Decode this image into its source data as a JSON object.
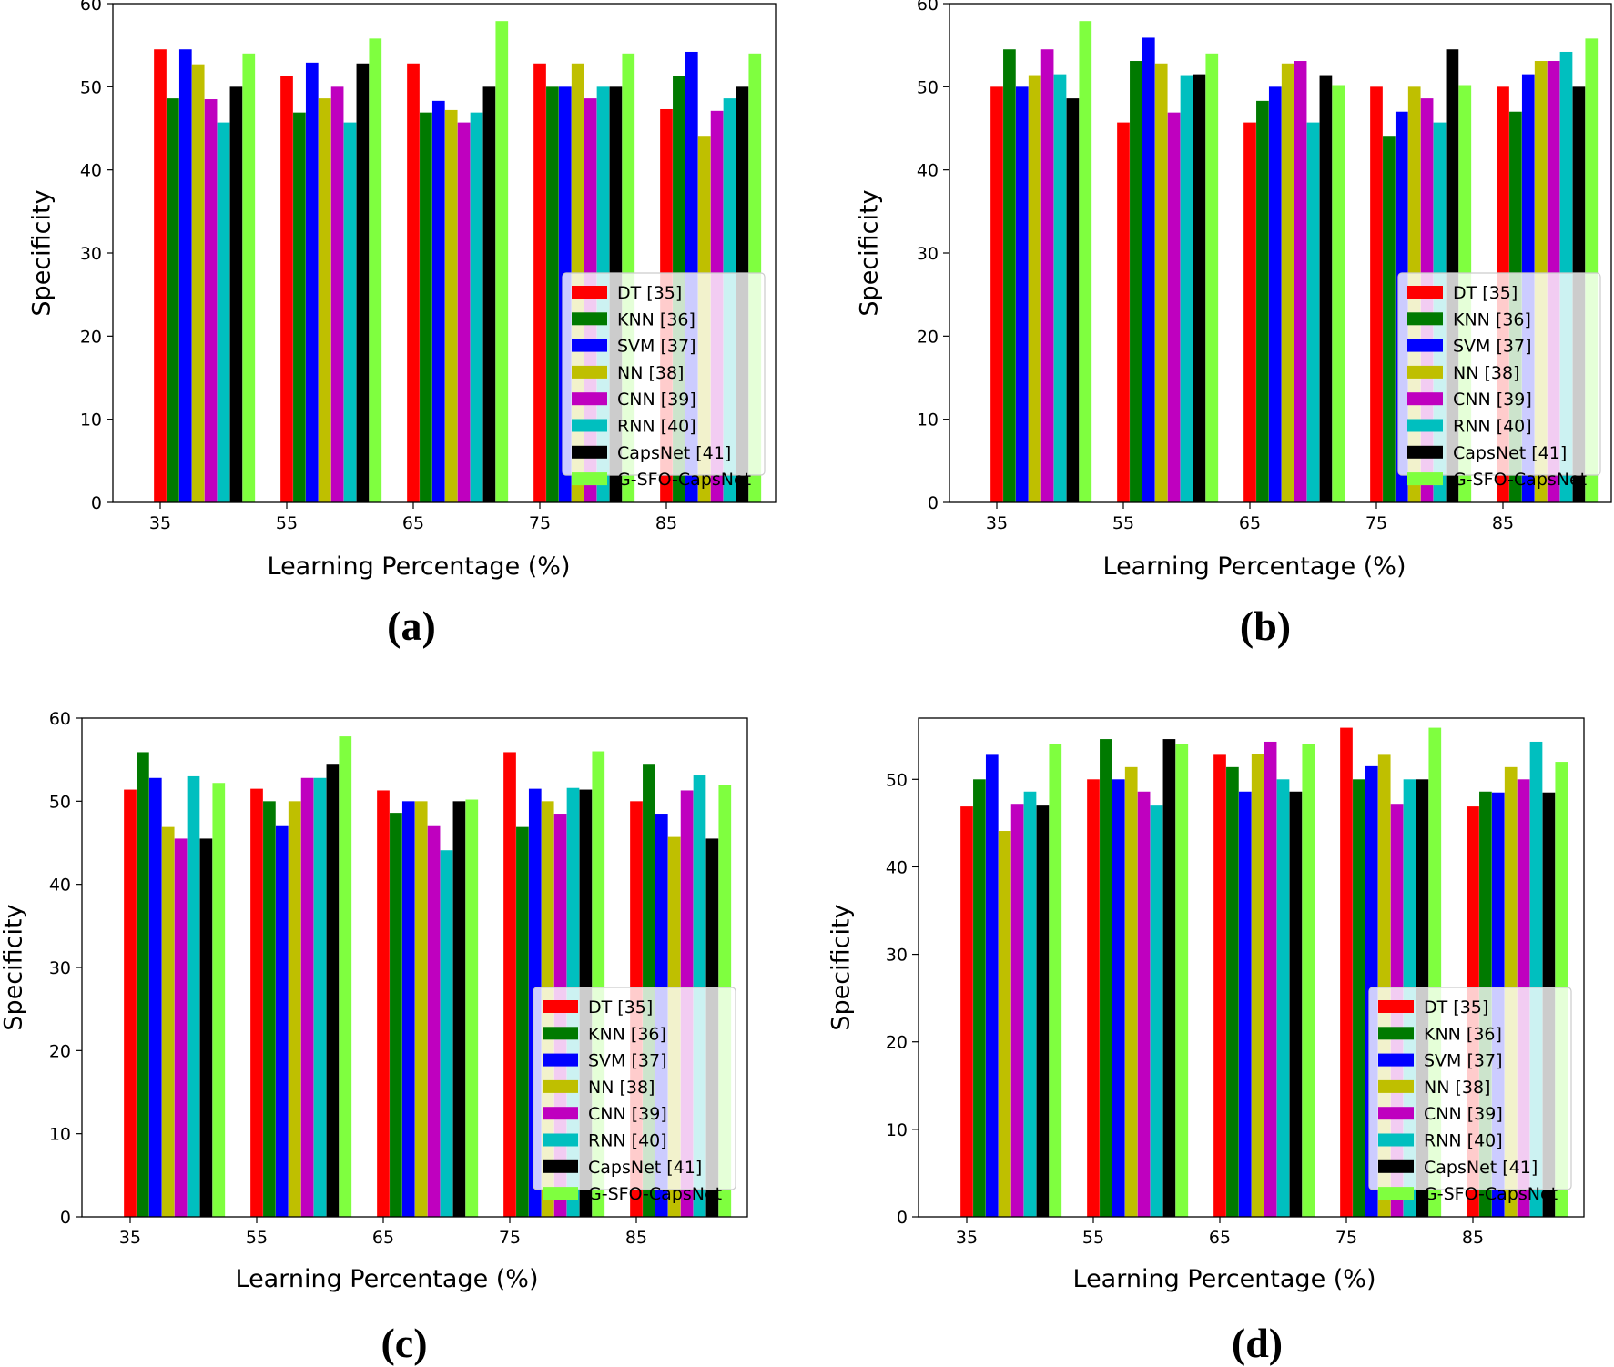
{
  "colors": {
    "DT [35]": "#ff0000",
    "KNN [36]": "#007a00",
    "SVM [37]": "#0000ff",
    "NN [38]": "#bfbf00",
    "CNN [39]": "#bf00bf",
    "RNN [40]": "#00bfbf",
    "CapsNet [41]": "#000000",
    "G-SFO-CapsNet": "#7fff3f"
  },
  "chart_data": [
    {
      "panel": "(a)",
      "type": "bar",
      "xlabel": "Learning Percentage (%)",
      "ylabel": "Specificity",
      "ylim": [
        0,
        60
      ],
      "yticks": [
        0,
        10,
        20,
        30,
        40,
        50,
        60
      ],
      "categories": [
        "35",
        "55",
        "65",
        "75",
        "85"
      ],
      "legend_position": "lower-right",
      "series": [
        {
          "name": "DT [35]",
          "values": [
            54.5,
            51.3,
            52.8,
            52.8,
            47.3
          ]
        },
        {
          "name": "KNN [36]",
          "values": [
            48.6,
            46.9,
            46.9,
            50.0,
            51.3
          ]
        },
        {
          "name": "SVM [37]",
          "values": [
            54.5,
            52.9,
            48.3,
            50.0,
            54.2
          ]
        },
        {
          "name": "NN [38]",
          "values": [
            52.7,
            48.6,
            47.2,
            52.8,
            44.1
          ]
        },
        {
          "name": "CNN [39]",
          "values": [
            48.5,
            50.0,
            45.7,
            48.6,
            47.1
          ]
        },
        {
          "name": "RNN [40]",
          "values": [
            45.7,
            45.7,
            46.9,
            50.0,
            48.6
          ]
        },
        {
          "name": "CapsNet [41]",
          "values": [
            50.0,
            52.8,
            50.0,
            50.0,
            50.0
          ]
        },
        {
          "name": "G-SFO-CapsNet",
          "values": [
            54.0,
            55.8,
            57.9,
            54.0,
            54.0
          ]
        }
      ]
    },
    {
      "panel": "(b)",
      "type": "bar",
      "xlabel": "Learning Percentage (%)",
      "ylabel": "Specificity",
      "ylim": [
        0,
        60
      ],
      "yticks": [
        0,
        10,
        20,
        30,
        40,
        50,
        60
      ],
      "categories": [
        "35",
        "55",
        "65",
        "75",
        "85"
      ],
      "legend_position": "lower-right",
      "series": [
        {
          "name": "DT [35]",
          "values": [
            50.0,
            45.7,
            45.7,
            50.0,
            50.0
          ]
        },
        {
          "name": "KNN [36]",
          "values": [
            54.5,
            53.1,
            48.3,
            44.1,
            47.0
          ]
        },
        {
          "name": "SVM [37]",
          "values": [
            50.0,
            55.9,
            50.0,
            47.0,
            51.5
          ]
        },
        {
          "name": "NN [38]",
          "values": [
            51.4,
            52.8,
            52.8,
            50.0,
            53.1
          ]
        },
        {
          "name": "CNN [39]",
          "values": [
            54.5,
            46.9,
            53.1,
            48.6,
            53.1
          ]
        },
        {
          "name": "RNN [40]",
          "values": [
            51.5,
            51.4,
            45.7,
            45.7,
            54.2
          ]
        },
        {
          "name": "CapsNet [41]",
          "values": [
            48.6,
            51.5,
            51.4,
            54.5,
            50.0
          ]
        },
        {
          "name": "G-SFO-CapsNet",
          "values": [
            57.9,
            54.0,
            50.2,
            50.2,
            55.8
          ]
        }
      ]
    },
    {
      "panel": "(c)",
      "type": "bar",
      "xlabel": "Learning Percentage (%)",
      "ylabel": "Specificity",
      "ylim": [
        0,
        60
      ],
      "yticks": [
        0,
        10,
        20,
        30,
        40,
        50,
        60
      ],
      "categories": [
        "35",
        "55",
        "65",
        "75",
        "85"
      ],
      "legend_position": "lower-right",
      "series": [
        {
          "name": "DT [35]",
          "values": [
            51.4,
            51.5,
            51.3,
            55.9,
            50.0
          ]
        },
        {
          "name": "KNN [36]",
          "values": [
            55.9,
            50.0,
            48.6,
            46.9,
            54.5
          ]
        },
        {
          "name": "SVM [37]",
          "values": [
            52.8,
            47.0,
            50.0,
            51.5,
            48.5
          ]
        },
        {
          "name": "NN [38]",
          "values": [
            46.9,
            50.0,
            50.0,
            50.0,
            45.7
          ]
        },
        {
          "name": "CNN [39]",
          "values": [
            45.5,
            52.8,
            47.0,
            48.5,
            51.3
          ]
        },
        {
          "name": "RNN [40]",
          "values": [
            53.0,
            52.8,
            44.1,
            51.6,
            53.1
          ]
        },
        {
          "name": "CapsNet [41]",
          "values": [
            45.5,
            54.5,
            50.0,
            51.4,
            45.5
          ]
        },
        {
          "name": "G-SFO-CapsNet",
          "values": [
            52.2,
            57.8,
            50.2,
            56.0,
            52.0
          ]
        }
      ]
    },
    {
      "panel": "(d)",
      "type": "bar",
      "xlabel": "Learning Percentage (%)",
      "ylabel": "Specificity",
      "ylim": [
        0,
        57
      ],
      "yticks": [
        0,
        10,
        20,
        30,
        40,
        50
      ],
      "categories": [
        "35",
        "55",
        "65",
        "75",
        "85"
      ],
      "legend_position": "lower-right",
      "series": [
        {
          "name": "DT [35]",
          "values": [
            46.9,
            50.0,
            52.8,
            55.9,
            46.9
          ]
        },
        {
          "name": "KNN [36]",
          "values": [
            50.0,
            54.6,
            51.4,
            50.0,
            48.6
          ]
        },
        {
          "name": "SVM [37]",
          "values": [
            52.8,
            50.0,
            48.6,
            51.5,
            48.5
          ]
        },
        {
          "name": "NN [38]",
          "values": [
            44.1,
            51.4,
            52.9,
            52.8,
            51.4
          ]
        },
        {
          "name": "CNN [39]",
          "values": [
            47.2,
            48.6,
            54.3,
            47.2,
            50.0
          ]
        },
        {
          "name": "RNN [40]",
          "values": [
            48.6,
            47.0,
            50.0,
            50.0,
            54.3
          ]
        },
        {
          "name": "CapsNet [41]",
          "values": [
            47.0,
            54.6,
            48.6,
            50.0,
            48.5
          ]
        },
        {
          "name": "G-SFO-CapsNet",
          "values": [
            54.0,
            54.0,
            54.0,
            55.9,
            52.0
          ]
        }
      ]
    }
  ]
}
